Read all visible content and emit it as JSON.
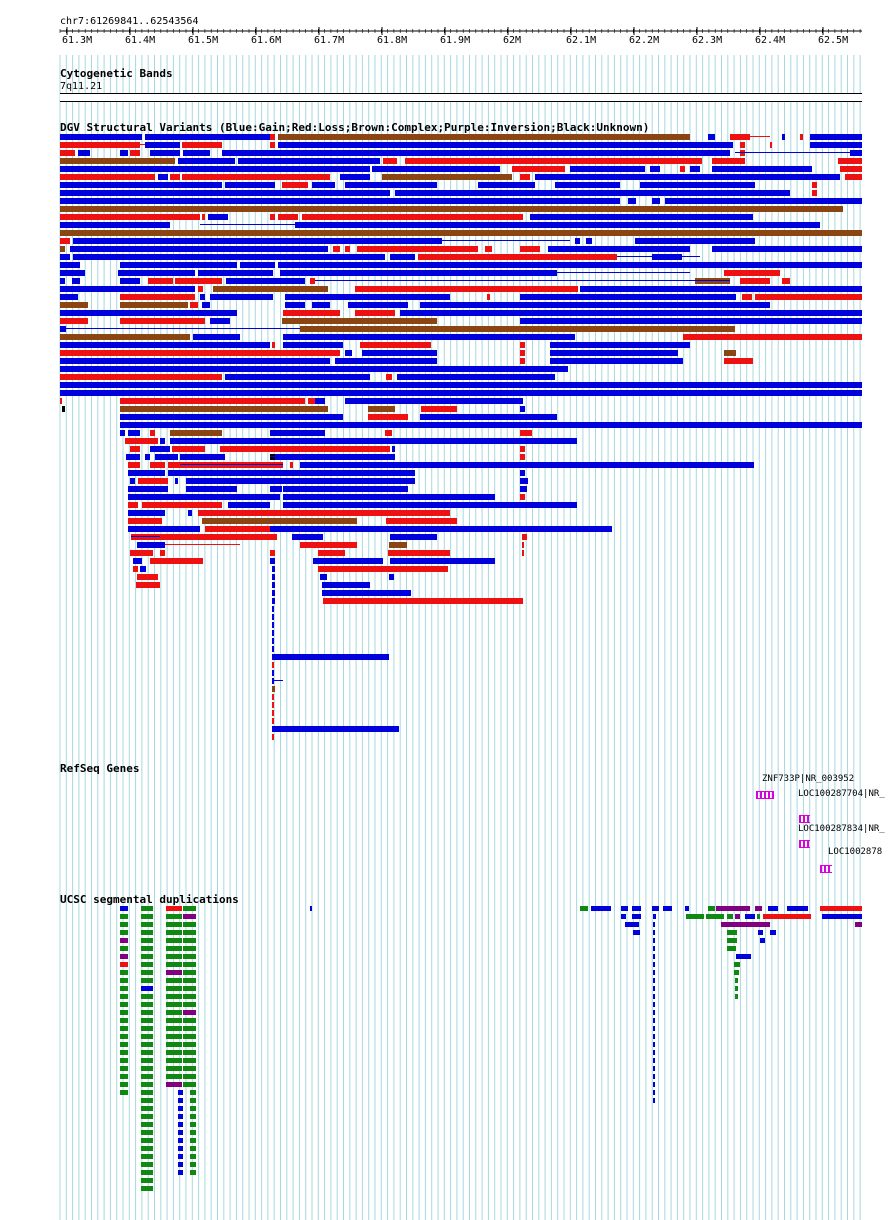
{
  "header": {
    "coords": "chr7:61269841..62543564",
    "ticks": [
      "61.3M",
      "61.4M",
      "61.5M",
      "61.6M",
      "61.7M",
      "61.8M",
      "61.9M",
      "62M",
      "62.1M",
      "62.2M",
      "62.3M",
      "62.4M",
      "62.5M"
    ]
  },
  "tracks": {
    "cytoband": {
      "title": "Cytogenetic Bands",
      "band": "7q11.21"
    },
    "dgv": {
      "title": "DGV Structural Variants (Blue:Gain;Red:Loss;Brown:Complex;Purple:Inversion;Black:Unknown)"
    },
    "refseq": {
      "title": "RefSeq Genes",
      "genes": [
        {
          "label": "ZNF733P|NR_003952"
        },
        {
          "label": "LOC100287704|NR_"
        },
        {
          "label": "LOC100287834|NR_"
        },
        {
          "label": "LOC1002878"
        }
      ]
    },
    "segdup": {
      "title": "UCSC segmental duplications"
    }
  },
  "colors": {
    "gain": "#0000dd",
    "loss": "#ee1111",
    "complex": "#8b4513",
    "inversion": "#800080",
    "unknown": "#000000",
    "grid": "#a6d8e0",
    "gene": "#dd00dd",
    "dup_green": "#118811"
  }
}
